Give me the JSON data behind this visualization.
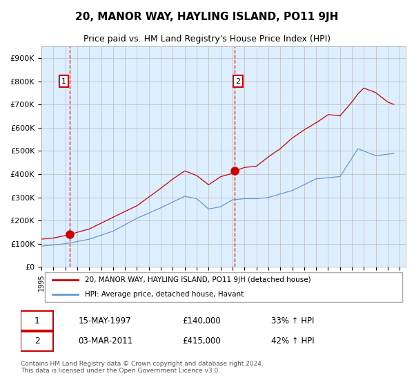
{
  "title": "20, MANOR WAY, HAYLING ISLAND, PO11 9JH",
  "subtitle": "Price paid vs. HM Land Registry's House Price Index (HPI)",
  "red_label": "20, MANOR WAY, HAYLING ISLAND, PO11 9JH (detached house)",
  "blue_label": "HPI: Average price, detached house, Havant",
  "annotation1_date": "15-MAY-1997",
  "annotation1_price": "£140,000",
  "annotation1_hpi": "33% ↑ HPI",
  "annotation2_date": "03-MAR-2011",
  "annotation2_price": "£415,000",
  "annotation2_hpi": "42% ↑ HPI",
  "footer": "Contains HM Land Registry data © Crown copyright and database right 2024.\nThis data is licensed under the Open Government Licence v3.0.",
  "red_color": "#cc0000",
  "blue_color": "#6699cc",
  "bg_color": "#ddeeff",
  "grid_color": "#bbbbbb",
  "ylim": [
    0,
    950000
  ],
  "yticks": [
    0,
    100000,
    200000,
    300000,
    400000,
    500000,
    600000,
    700000,
    800000,
    900000
  ],
  "xlim_start": 1995.5,
  "xlim_end": 2025.5,
  "purchase1_x": 1997.37,
  "purchase1_y": 140000,
  "purchase2_x": 2011.17,
  "purchase2_y": 415000
}
